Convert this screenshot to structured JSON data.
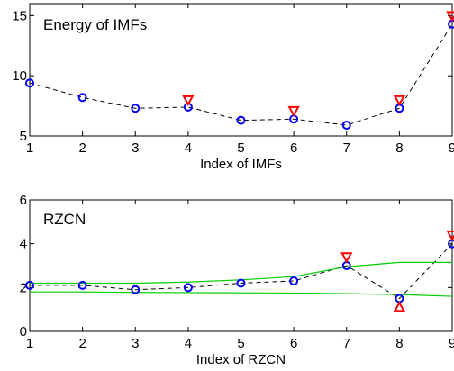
{
  "chart_data": [
    {
      "type": "line",
      "title": "Energy of IMFs",
      "xlabel": "Index of IMFs",
      "ylabel": "",
      "xlim": [
        1,
        9
      ],
      "ylim": [
        5,
        16
      ],
      "x_ticks": [
        "1",
        "2",
        "3",
        "4",
        "5",
        "6",
        "7",
        "8",
        "9"
      ],
      "y_ticks": [
        "5",
        "10",
        "15"
      ],
      "x": [
        1,
        2,
        3,
        4,
        5,
        6,
        7,
        8,
        9
      ],
      "series": [
        {
          "marker": "circle",
          "color": "#0000ff",
          "style": "black-dashed",
          "values": [
            9.4,
            8.2,
            7.3,
            7.4,
            6.3,
            6.4,
            5.9,
            7.3,
            14.3
          ]
        },
        {
          "marker": "triangle-down",
          "color": "#ff0000",
          "style": "markers",
          "x": [
            4,
            6,
            8,
            9
          ],
          "values": [
            8.0,
            7.1,
            8.0,
            15.0
          ]
        }
      ]
    },
    {
      "type": "line",
      "title": "RZCN",
      "xlabel": "Index of RZCN",
      "ylabel": "",
      "xlim": [
        1,
        9
      ],
      "ylim": [
        0,
        6
      ],
      "x_ticks": [
        "1",
        "2",
        "3",
        "4",
        "5",
        "6",
        "7",
        "8",
        "9"
      ],
      "y_ticks": [
        "0",
        "2",
        "4",
        "6"
      ],
      "x": [
        1,
        2,
        3,
        4,
        5,
        6,
        7,
        8,
        9
      ],
      "series": [
        {
          "marker": "circle",
          "color": "#0000ff",
          "style": "black-dashed",
          "values": [
            2.1,
            2.1,
            1.9,
            2.0,
            2.2,
            2.3,
            3.0,
            1.5,
            4.0
          ]
        },
        {
          "marker": "triangle-down",
          "color": "#ff0000",
          "style": "markers",
          "x": [
            7,
            9
          ],
          "values": [
            3.4,
            4.4
          ]
        },
        {
          "marker": "triangle-up",
          "color": "#ff0000",
          "style": "markers",
          "x": [
            8
          ],
          "values": [
            1.1
          ]
        },
        {
          "marker": "none",
          "color": "#00cc00",
          "style": "line",
          "values": [
            2.2,
            2.2,
            2.2,
            2.25,
            2.35,
            2.5,
            2.95,
            3.15,
            3.15
          ]
        },
        {
          "marker": "none",
          "color": "#00cc00",
          "style": "line",
          "values": [
            1.8,
            1.8,
            1.78,
            1.77,
            1.76,
            1.75,
            1.72,
            1.68,
            1.6
          ]
        }
      ]
    }
  ]
}
